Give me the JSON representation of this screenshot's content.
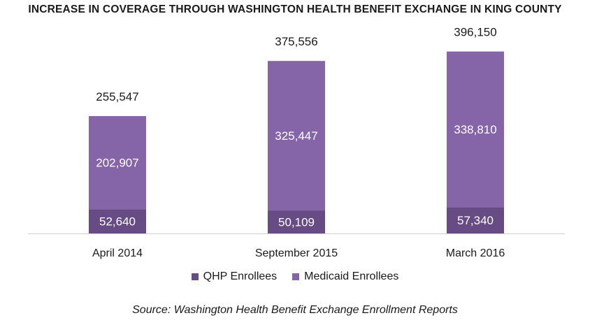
{
  "colors": {
    "qhp": "#674b84",
    "medicaid": "#8565a8",
    "axis": "#d0d0d0",
    "text": "#1a1a1a",
    "label_inside": "#ffffff"
  },
  "chart_data": {
    "type": "bar",
    "stacked": true,
    "title": "INCREASE IN COVERAGE THROUGH WASHINGTON HEALTH BENEFIT EXCHANGE IN KING COUNTY",
    "categories": [
      "April 2014",
      "September 2015",
      "March 2016"
    ],
    "series": [
      {
        "name": "QHP Enrollees",
        "values": [
          52640,
          50109,
          57340
        ],
        "labels": [
          "52,640",
          "50,109",
          "57,340"
        ]
      },
      {
        "name": "Medicaid Enrollees",
        "values": [
          202907,
          325447,
          338810
        ],
        "labels": [
          "202,907",
          "325,447",
          "338,810"
        ]
      }
    ],
    "totals": [
      255547,
      375556,
      396150
    ],
    "total_labels": [
      "255,547",
      "375,556",
      "396,150"
    ],
    "ylim": [
      0,
      420000
    ],
    "grid": false,
    "legend_position": "bottom"
  },
  "source": "Source: Washington Health Benefit Exchange Enrollment Reports"
}
